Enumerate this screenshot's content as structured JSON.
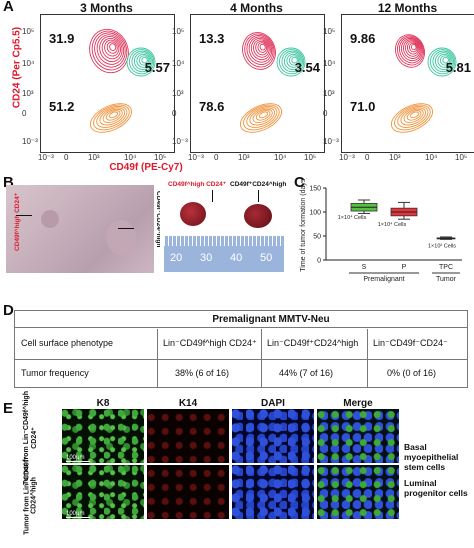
{
  "panels": {
    "a": "A",
    "b": "B",
    "c": "C",
    "d": "D",
    "e": "E"
  },
  "facs": {
    "titles": [
      "3 Months",
      "4 Months",
      "12 Months"
    ],
    "ylabel": "CD24 (Per Cp5.5)",
    "xlabel": "CD49f (PE-Cy7)",
    "xticks": [
      "10⁻³",
      "0",
      "10³",
      "10⁴",
      "10⁵"
    ],
    "yticks": [
      "10⁵",
      "10⁴",
      "10³",
      "0",
      "10⁻³"
    ],
    "plots": [
      {
        "pct_top": "31.9",
        "pct_right": "5.57",
        "pct_bottom": "51.2"
      },
      {
        "pct_top": "13.3",
        "pct_right": "3.54",
        "pct_bottom": "78.6"
      },
      {
        "pct_top": "9.86",
        "pct_right": "5.81",
        "pct_bottom": "71.0"
      }
    ],
    "colors": {
      "pink": "#e0345a",
      "teal": "#3cc6a0",
      "orange": "#f0923a"
    }
  },
  "panel_b": {
    "left_label_top": "CD49f^high CD24⁺",
    "left_label_bottom": "CD49f⁺CD24^high",
    "tumor_label_1": "CD49f^high CD24⁺",
    "tumor_label_2": "CD49f⁺CD24^high",
    "ruler_ticks": [
      "20",
      "30",
      "40",
      "50"
    ]
  },
  "chart_data": {
    "type": "box",
    "ylabel": "Time of tumor formation (days)",
    "ylim": [
      0,
      150
    ],
    "yticks": [
      "0",
      "50",
      "100",
      "150"
    ],
    "categories": [
      "S",
      "P",
      "TPC"
    ],
    "group_labels": [
      "Premalignant",
      "Tumor"
    ],
    "annotations": [
      "1×10⁴ Cells",
      "1×10⁴ Cells",
      "1×10² Cells"
    ],
    "boxes": [
      {
        "name": "S",
        "min": 97,
        "q1": 102,
        "median": 110,
        "q3": 118,
        "max": 125,
        "color": "#55c140"
      },
      {
        "name": "P",
        "min": 85,
        "q1": 92,
        "median": 100,
        "q3": 108,
        "max": 120,
        "color": "#e8343b"
      },
      {
        "name": "TPC",
        "min": 43,
        "q1": 44,
        "median": 45,
        "q3": 46,
        "max": 48,
        "color": "#555555"
      }
    ]
  },
  "table": {
    "title": "Premalignant MMTV-Neu",
    "row1_label": "Cell surface phenotype",
    "col1": "Lin⁻CD49f^high CD24⁺",
    "col2": "Lin⁻CD49f⁺CD24^high",
    "col3": "Lin⁻CD49f⁻CD24⁻",
    "row2_label": "Tumor frequency",
    "v1": "38% (6 of 16)",
    "v2": "44% (7 of 16)",
    "v3": "0% (0 of 16)"
  },
  "panel_e": {
    "titles": [
      "K8",
      "K14",
      "DAPI",
      "Merge"
    ],
    "row1_label": "Tumor from Lin⁻CD49f^high CD24⁺",
    "row2_label": "Tumor from Lin⁻CD49f⁺ CD24^high",
    "row1_side": "Basal myoepithelial stem cells",
    "row2_side": "Luminal progenitor cells",
    "scale": "100μm"
  }
}
